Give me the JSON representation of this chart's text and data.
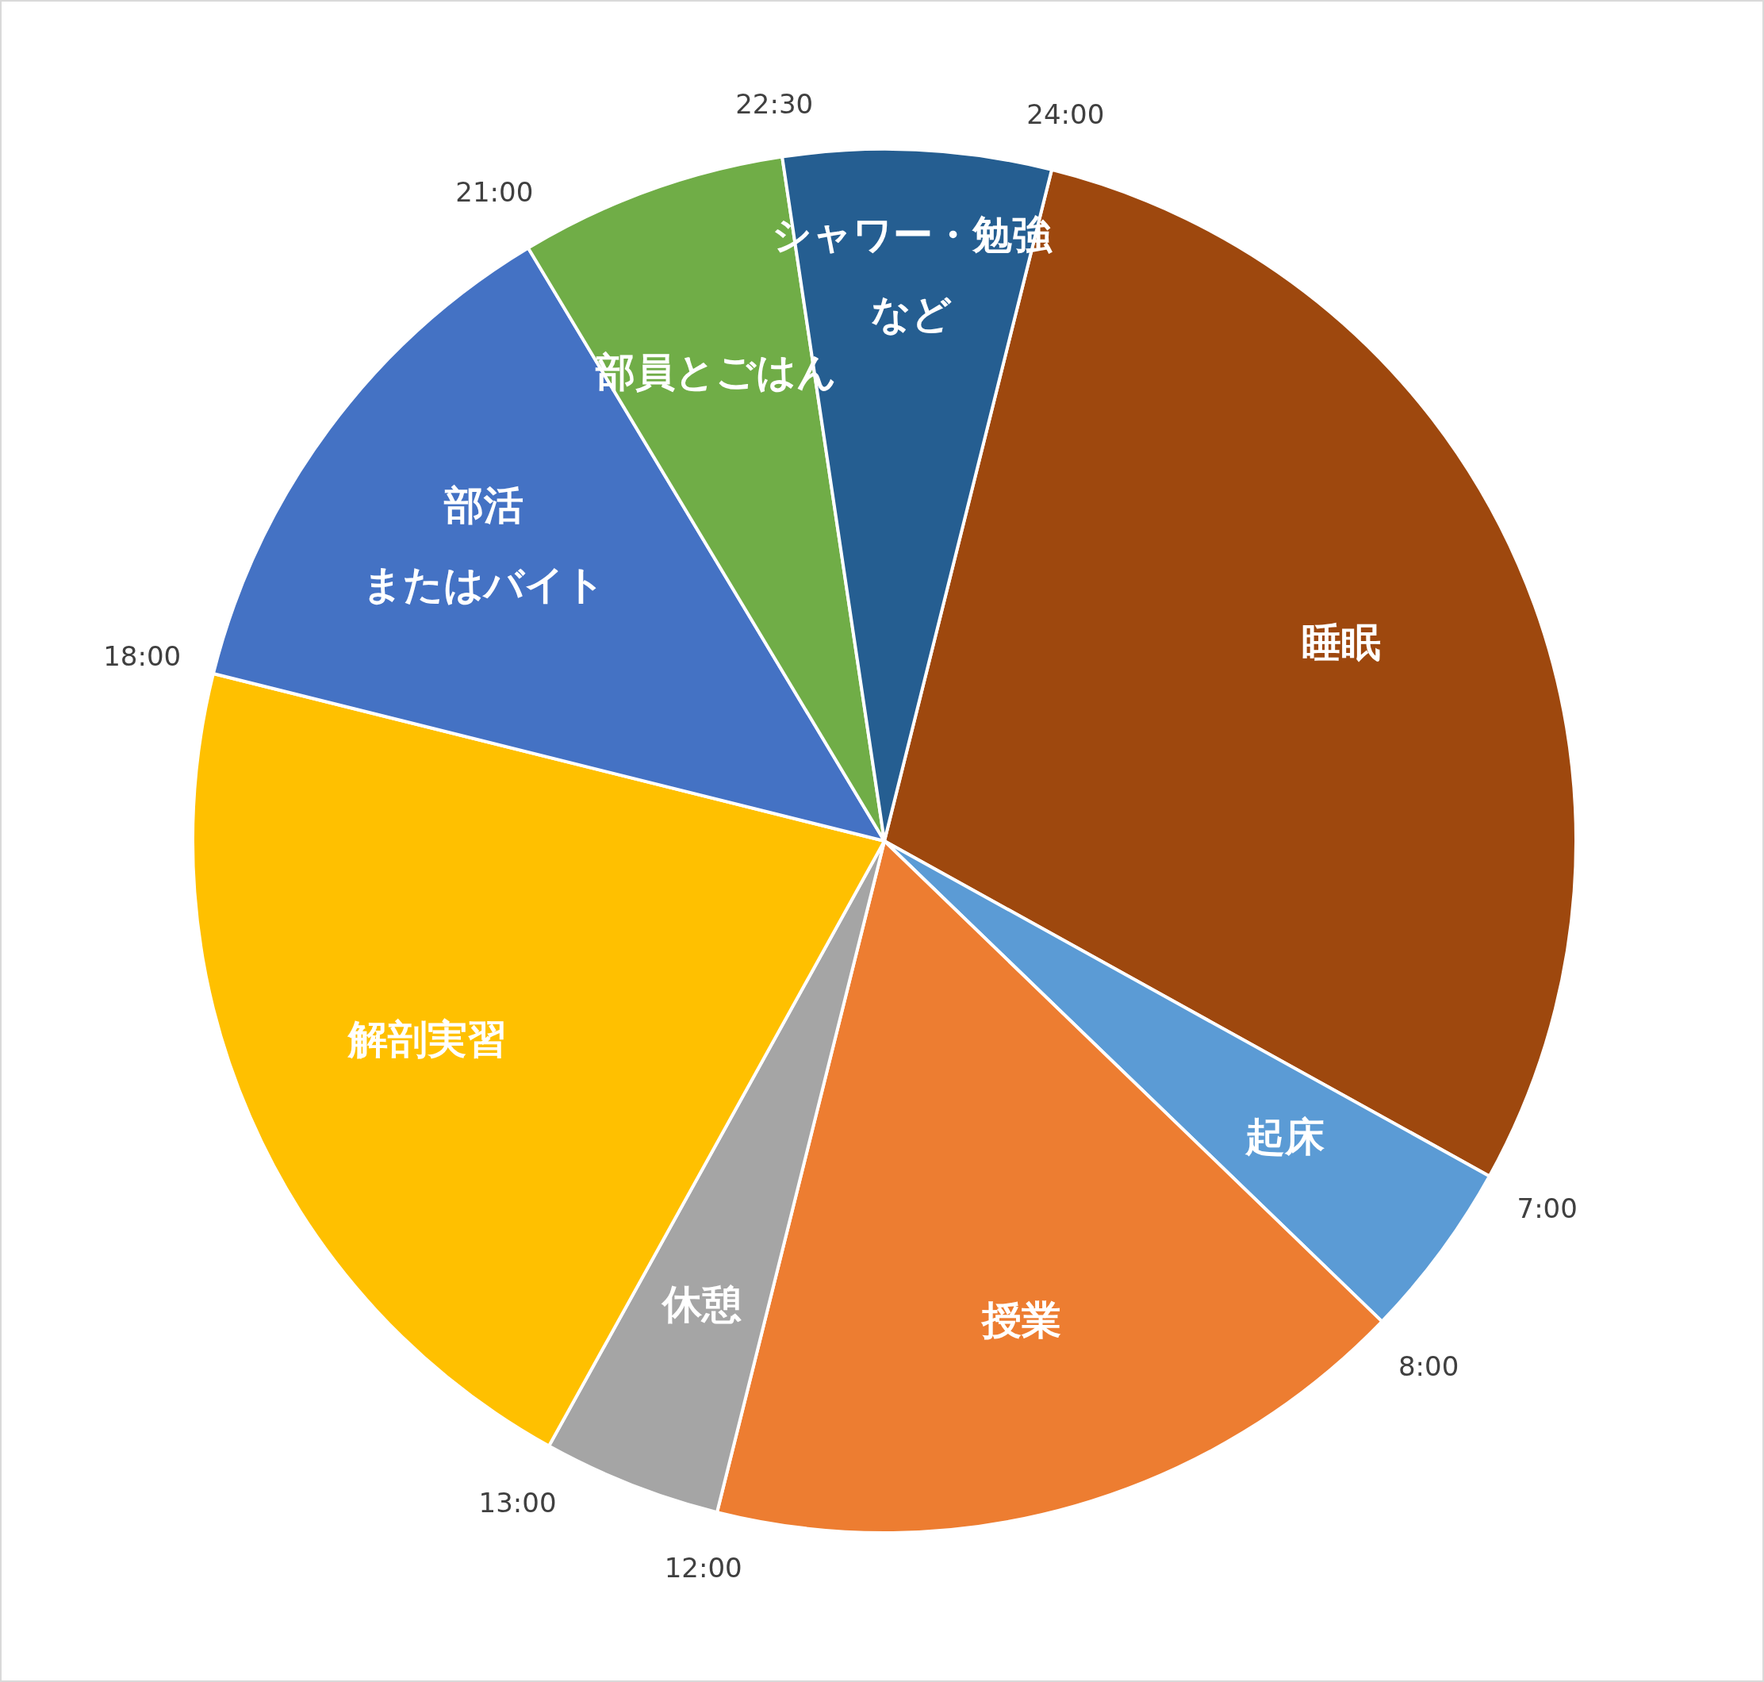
{
  "chart_data": {
    "type": "pie",
    "categories": [
      "睡眠",
      "起床",
      "授業",
      "休憩",
      "解剖実習",
      "部活またはバイト",
      "部員とごはん",
      "シャワー・勉強など"
    ],
    "values": [
      29.16,
      4.17,
      16.67,
      4.17,
      20.83,
      12.5,
      6.25,
      6.25
    ],
    "colors": [
      "#9e480e",
      "#5b9bd5",
      "#ed7d31",
      "#a5a5a5",
      "#ffc000",
      "#4472c4",
      "#70ad47",
      "#255e91"
    ],
    "annotations": [
      "24:00",
      "7:00",
      "8:00",
      "12:00",
      "13:00",
      "18:00",
      "21:00",
      "22:30"
    ],
    "legend": false
  }
}
